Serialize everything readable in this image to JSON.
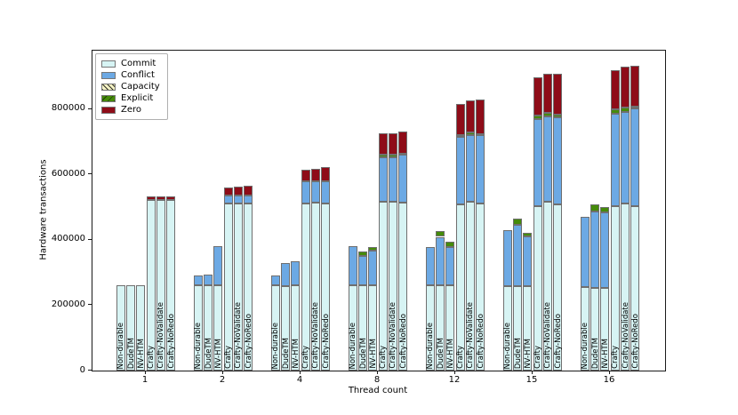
{
  "chart_data": {
    "type": "bar",
    "stacked": true,
    "title": "",
    "xlabel": "Thread count",
    "ylabel": "Hardware transactions",
    "ylim": [
      0,
      978000
    ],
    "grid": false,
    "legend_position": "upper-left",
    "yticks": [
      {
        "value": 0,
        "label": "0"
      },
      {
        "value": 200000,
        "label": "200000"
      },
      {
        "value": 400000,
        "label": "400000"
      },
      {
        "value": 600000,
        "label": "600000"
      },
      {
        "value": 800000,
        "label": "800000"
      }
    ],
    "categories": [
      "1",
      "2",
      "4",
      "8",
      "12",
      "15",
      "16"
    ],
    "bar_labels": [
      "Non-durable",
      "DudeTM",
      "NV-HTM",
      "Crafty",
      "Crafty-NoValidate",
      "Crafty-NoRedo"
    ],
    "segment_order": [
      "commit",
      "conflict",
      "capacity",
      "explicit",
      "zero"
    ],
    "legend": [
      {
        "key": "commit",
        "label": "Commit",
        "color": "#d7f4f4",
        "hatch": "none"
      },
      {
        "key": "conflict",
        "label": "Conflict",
        "color": "#6ca9e4",
        "hatch": "none"
      },
      {
        "key": "capacity",
        "label": "Capacity",
        "color": "#f4f2c4",
        "hatch": "forward-slash"
      },
      {
        "key": "explicit",
        "label": "Explicit",
        "color": "#458b0a",
        "hatch": "back-slash"
      },
      {
        "key": "zero",
        "label": "Zero",
        "color": "#8e0c18",
        "hatch": "none"
      }
    ],
    "groups": [
      {
        "thread": "1",
        "bars": [
          {
            "label": "Non-durable",
            "commit": 261000,
            "conflict": 0,
            "capacity": 0,
            "explicit": 0,
            "zero": 0
          },
          {
            "label": "DudeTM",
            "commit": 261000,
            "conflict": 0,
            "capacity": 0,
            "explicit": 0,
            "zero": 0
          },
          {
            "label": "NV-HTM",
            "commit": 261000,
            "conflict": 0,
            "capacity": 0,
            "explicit": 0,
            "zero": 0
          },
          {
            "label": "Crafty",
            "commit": 521000,
            "conflict": 0,
            "capacity": 0,
            "explicit": 0,
            "zero": 11000
          },
          {
            "label": "Crafty-NoValidate",
            "commit": 521000,
            "conflict": 0,
            "capacity": 0,
            "explicit": 0,
            "zero": 11000
          },
          {
            "label": "Crafty-NoRedo",
            "commit": 521000,
            "conflict": 0,
            "capacity": 0,
            "explicit": 0,
            "zero": 12000
          }
        ]
      },
      {
        "thread": "2",
        "bars": [
          {
            "label": "Non-durable",
            "commit": 261000,
            "conflict": 30000,
            "capacity": 0,
            "explicit": 0,
            "zero": 0
          },
          {
            "label": "DudeTM",
            "commit": 261000,
            "conflict": 33000,
            "capacity": 0,
            "explicit": 0,
            "zero": 0
          },
          {
            "label": "NV-HTM",
            "commit": 261000,
            "conflict": 120000,
            "capacity": 0,
            "explicit": 0,
            "zero": 0
          },
          {
            "label": "Crafty",
            "commit": 512000,
            "conflict": 23000,
            "capacity": 0,
            "explicit": 0,
            "zero": 26000
          },
          {
            "label": "Crafty-NoValidate",
            "commit": 512000,
            "conflict": 23000,
            "capacity": 0,
            "explicit": 0,
            "zero": 27000
          },
          {
            "label": "Crafty-NoRedo",
            "commit": 512000,
            "conflict": 24000,
            "capacity": 0,
            "explicit": 0,
            "zero": 28000
          }
        ]
      },
      {
        "thread": "4",
        "bars": [
          {
            "label": "Non-durable",
            "commit": 260000,
            "conflict": 32000,
            "capacity": 0,
            "explicit": 0,
            "zero": 0
          },
          {
            "label": "DudeTM",
            "commit": 258000,
            "conflict": 72000,
            "capacity": 0,
            "explicit": 0,
            "zero": 0
          },
          {
            "label": "NV-HTM",
            "commit": 260000,
            "conflict": 74000,
            "capacity": 0,
            "explicit": 0,
            "zero": 0
          },
          {
            "label": "Crafty",
            "commit": 512000,
            "conflict": 66000,
            "capacity": 0,
            "explicit": 0,
            "zero": 37000
          },
          {
            "label": "Crafty-NoValidate",
            "commit": 513000,
            "conflict": 67000,
            "capacity": 0,
            "explicit": 0,
            "zero": 37000
          },
          {
            "label": "Crafty-NoRedo",
            "commit": 512000,
            "conflict": 68000,
            "capacity": 0,
            "explicit": 0,
            "zero": 42000
          }
        ]
      },
      {
        "thread": "8",
        "bars": [
          {
            "label": "Non-durable",
            "commit": 261000,
            "conflict": 119000,
            "capacity": 0,
            "explicit": 0,
            "zero": 0
          },
          {
            "label": "DudeTM",
            "commit": 261000,
            "conflict": 89000,
            "capacity": 0,
            "explicit": 14000,
            "zero": 0
          },
          {
            "label": "NV-HTM",
            "commit": 261000,
            "conflict": 105000,
            "capacity": 0,
            "explicit": 11000,
            "zero": 0
          },
          {
            "label": "Crafty",
            "commit": 516000,
            "conflict": 137000,
            "capacity": 0,
            "explicit": 7000,
            "zero": 65000
          },
          {
            "label": "Crafty-NoValidate",
            "commit": 517000,
            "conflict": 136000,
            "capacity": 0,
            "explicit": 7000,
            "zero": 66000
          },
          {
            "label": "Crafty-NoRedo",
            "commit": 513000,
            "conflict": 148000,
            "capacity": 0,
            "explicit": 2000,
            "zero": 68000
          }
        ]
      },
      {
        "thread": "12",
        "bars": [
          {
            "label": "Non-durable",
            "commit": 260000,
            "conflict": 118000,
            "capacity": 0,
            "explicit": 0,
            "zero": 0
          },
          {
            "label": "DudeTM",
            "commit": 260000,
            "conflict": 149000,
            "capacity": 0,
            "explicit": 17000,
            "zero": 0
          },
          {
            "label": "NV-HTM",
            "commit": 260000,
            "conflict": 118000,
            "capacity": 0,
            "explicit": 15000,
            "zero": 0
          },
          {
            "label": "Crafty",
            "commit": 509000,
            "conflict": 206000,
            "capacity": 0,
            "explicit": 6000,
            "zero": 95000
          },
          {
            "label": "Crafty-NoValidate",
            "commit": 515000,
            "conflict": 205000,
            "capacity": 0,
            "explicit": 8000,
            "zero": 98000
          },
          {
            "label": "Crafty-NoRedo",
            "commit": 512000,
            "conflict": 208000,
            "capacity": 0,
            "explicit": 3000,
            "zero": 105000
          }
        ]
      },
      {
        "thread": "15",
        "bars": [
          {
            "label": "Non-durable",
            "commit": 258000,
            "conflict": 170000,
            "capacity": 0,
            "explicit": 0,
            "zero": 0
          },
          {
            "label": "DudeTM",
            "commit": 258000,
            "conflict": 187000,
            "capacity": 0,
            "explicit": 20000,
            "zero": 0
          },
          {
            "label": "NV-HTM",
            "commit": 258000,
            "conflict": 153000,
            "capacity": 0,
            "explicit": 11000,
            "zero": 0
          },
          {
            "label": "Crafty",
            "commit": 504000,
            "conflict": 265000,
            "capacity": 0,
            "explicit": 11000,
            "zero": 118000
          },
          {
            "label": "Crafty-NoValidate",
            "commit": 516000,
            "conflict": 262000,
            "capacity": 0,
            "explicit": 10000,
            "zero": 120000
          },
          {
            "label": "Crafty-NoRedo",
            "commit": 507000,
            "conflict": 268000,
            "capacity": 0,
            "explicit": 8000,
            "zero": 124000
          }
        ]
      },
      {
        "thread": "16",
        "bars": [
          {
            "label": "Non-durable",
            "commit": 255000,
            "conflict": 215000,
            "capacity": 0,
            "explicit": 0,
            "zero": 0
          },
          {
            "label": "DudeTM",
            "commit": 253000,
            "conflict": 234000,
            "capacity": 0,
            "explicit": 21000,
            "zero": 0
          },
          {
            "label": "NV-HTM",
            "commit": 253000,
            "conflict": 232000,
            "capacity": 0,
            "explicit": 15000,
            "zero": 0
          },
          {
            "label": "Crafty",
            "commit": 502000,
            "conflict": 283000,
            "capacity": 0,
            "explicit": 14000,
            "zero": 120000
          },
          {
            "label": "Crafty-NoValidate",
            "commit": 510000,
            "conflict": 281000,
            "capacity": 0,
            "explicit": 12000,
            "zero": 125000
          },
          {
            "label": "Crafty-NoRedo",
            "commit": 504000,
            "conflict": 298000,
            "capacity": 0,
            "explicit": 4000,
            "zero": 127000
          }
        ]
      }
    ]
  }
}
